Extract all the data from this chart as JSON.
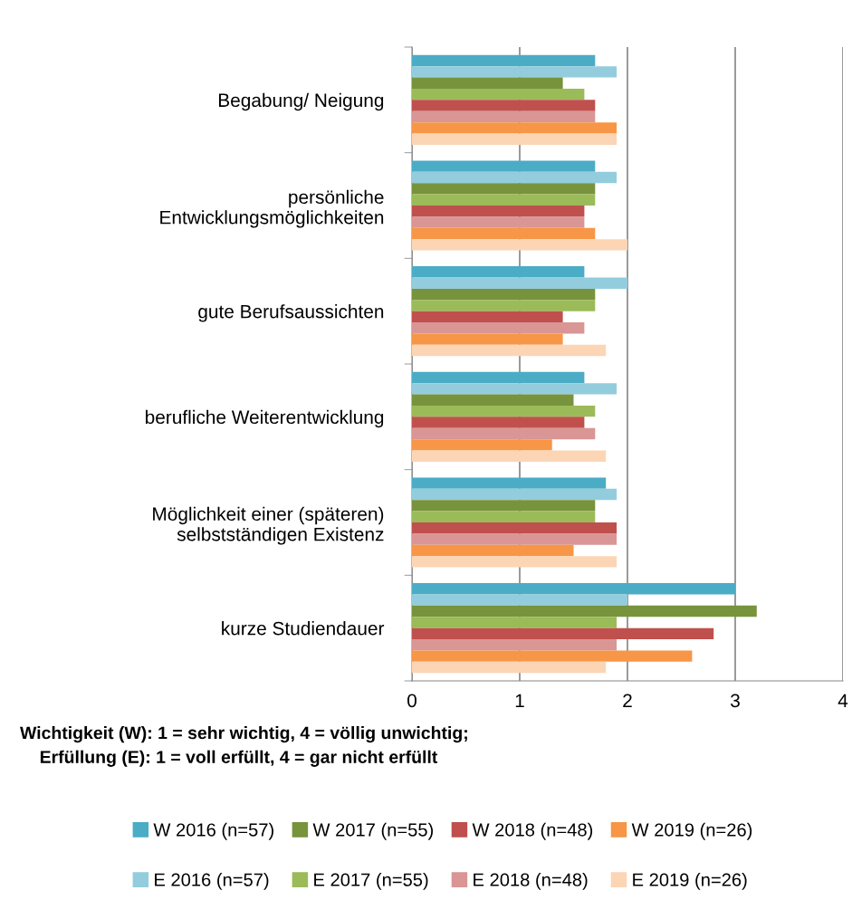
{
  "chart_data": {
    "type": "bar",
    "orientation": "horizontal",
    "categories": [
      "Begabung/ Neigung",
      "persönliche\nEntwicklungsmöglichkeiten",
      "gute Berufsaussichten",
      "berufliche Weiterentwicklung",
      "Möglichkeit einer (späteren)\nselbstständigen Existenz",
      "kurze Studiendauer"
    ],
    "series": [
      {
        "name": "W 2016 (n=57)",
        "color": "#4bacc6",
        "values": [
          1.7,
          1.7,
          1.6,
          1.6,
          1.8,
          3.0
        ]
      },
      {
        "name": "E 2016 (n=57)",
        "color": "#93cddd",
        "values": [
          1.9,
          1.9,
          2.0,
          1.9,
          1.9,
          2.0
        ]
      },
      {
        "name": "W 2017 (n=55)",
        "color": "#77933c",
        "values": [
          1.4,
          1.7,
          1.7,
          1.5,
          1.7,
          3.2
        ]
      },
      {
        "name": "E 2017 (n=55)",
        "color": "#9bbb59",
        "values": [
          1.6,
          1.7,
          1.7,
          1.7,
          1.7,
          1.9
        ]
      },
      {
        "name": "W 2018 (n=48)",
        "color": "#c0504d",
        "values": [
          1.7,
          1.6,
          1.4,
          1.6,
          1.9,
          2.8
        ]
      },
      {
        "name": "E 2018 (n=48)",
        "color": "#d99694",
        "values": [
          1.7,
          1.6,
          1.6,
          1.7,
          1.9,
          1.9
        ]
      },
      {
        "name": "W 2019 (n=26)",
        "color": "#f79646",
        "values": [
          1.9,
          1.7,
          1.4,
          1.3,
          1.5,
          2.6
        ]
      },
      {
        "name": "E 2019 (n=26)",
        "color": "#fcd5b5",
        "values": [
          1.9,
          2.0,
          1.8,
          1.8,
          1.9,
          1.8
        ]
      }
    ],
    "xlim": [
      0,
      4
    ],
    "xticks": [
      0,
      1,
      2,
      3,
      4
    ],
    "grid": "x",
    "legend": "bottom",
    "annotations": [
      "Wichtigkeit (W): 1 = sehr wichtig, 4 = völlig unwichtig;\n    Erfüllung (E): 1 = voll erfüllt, 4 = gar nicht erfüllt"
    ]
  }
}
